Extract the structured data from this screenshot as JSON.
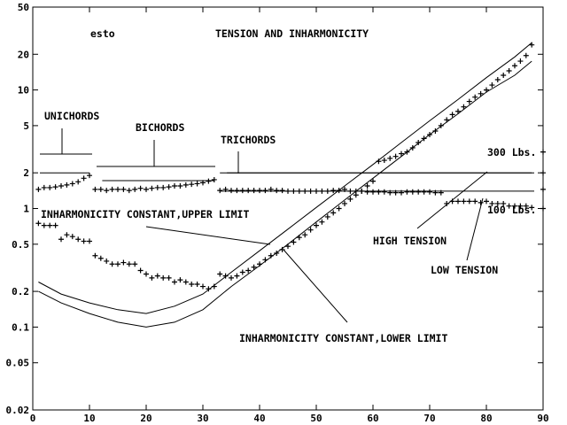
{
  "chart_data": {
    "type": "scatter",
    "title": "TENSION AND INHARMONICITY",
    "id_label": "esto",
    "yscale": "log",
    "xlim": [
      0,
      90
    ],
    "ylim": [
      0.02,
      50
    ],
    "x_ticks": [
      0,
      10,
      20,
      30,
      40,
      50,
      60,
      70,
      80,
      90
    ],
    "y_ticks": [
      0.02,
      0.05,
      0.1,
      0.2,
      0.5,
      1,
      2,
      5,
      10,
      20,
      50
    ],
    "y_tick_labels": [
      "0.02",
      "0.05",
      "0.1",
      "0.2",
      "0.5",
      "1",
      "2",
      "5",
      "10",
      "20",
      "50"
    ],
    "annotations": {
      "unichords": "UNICHORDS",
      "bichords": "BICHORDS",
      "trichords": "TRICHORDS",
      "lbs300": "300 Lbs.",
      "lbs100": "100 Lbs.",
      "inh_upper": "INHARMONICITY CONSTANT,UPPER LIMIT",
      "inh_lower": "INHARMONICITY CONSTANT,LOWER LIMIT",
      "high_tension": "HIGH TENSION",
      "low_tension": "LOW TENSION"
    },
    "reference_lines": [
      {
        "label": "300 Lbs.",
        "y": 2.0
      },
      {
        "label": "100 Lbs.",
        "y": 1.4
      }
    ],
    "series": [
      {
        "marker": "plus",
        "x": [
          1,
          2,
          3,
          4,
          5,
          6,
          7,
          8,
          9,
          10,
          11,
          12,
          13,
          14,
          15,
          16,
          17,
          18,
          19,
          20,
          21,
          22,
          23,
          24,
          25,
          26,
          27,
          28,
          29,
          30,
          31,
          32,
          33,
          34,
          35,
          36,
          37,
          38,
          39,
          40,
          41,
          42,
          43,
          44,
          45,
          46,
          47,
          48,
          49,
          50,
          51,
          52,
          53,
          54,
          55,
          56,
          57,
          58,
          59,
          60,
          61,
          62,
          63,
          64,
          65,
          66,
          67,
          68,
          69,
          70,
          71,
          72,
          73,
          74,
          75,
          76,
          77,
          78,
          79,
          80,
          81,
          82,
          83,
          84,
          85,
          86,
          87,
          88
        ],
        "y": [
          1.45,
          1.5,
          1.5,
          1.52,
          1.55,
          1.58,
          1.62,
          1.68,
          1.8,
          1.9,
          1.45,
          1.45,
          1.42,
          1.45,
          1.45,
          1.45,
          1.42,
          1.45,
          1.48,
          1.45,
          1.48,
          1.5,
          1.5,
          1.52,
          1.55,
          1.55,
          1.58,
          1.6,
          1.62,
          1.65,
          1.7,
          1.75,
          1.42,
          1.45,
          1.42,
          1.42,
          1.42,
          1.42,
          1.42,
          1.42,
          1.42,
          1.45,
          1.42,
          1.42,
          1.4,
          1.4,
          1.4,
          1.4,
          1.4,
          1.4,
          1.4,
          1.4,
          1.42,
          1.42,
          1.45,
          1.4,
          1.4,
          1.4,
          1.38,
          1.38,
          1.38,
          1.38,
          1.36,
          1.36,
          1.36,
          1.38,
          1.38,
          1.38,
          1.38,
          1.38,
          1.36,
          1.36,
          1.1,
          1.15,
          1.15,
          1.15,
          1.15,
          1.15,
          1.12,
          1.15,
          1.1,
          1.1,
          1.1,
          1.05,
          1.05,
          1.05,
          1.05,
          1.02
        ]
      },
      {
        "marker": "plus",
        "x": [
          1,
          2,
          3,
          4,
          5,
          6,
          7,
          8,
          9,
          10,
          11,
          12,
          13,
          14,
          15,
          16,
          17,
          18,
          19,
          20,
          21,
          22,
          23,
          24,
          25,
          26,
          27,
          28,
          29,
          30,
          31,
          32,
          33,
          34,
          35,
          36,
          37,
          38,
          39,
          40,
          41,
          42,
          43,
          44,
          45,
          46,
          47,
          48,
          49,
          50,
          51,
          52,
          53,
          54,
          55,
          56,
          57,
          58,
          59,
          60,
          61,
          62,
          63,
          64,
          65,
          66,
          67,
          68,
          69,
          70,
          71,
          72,
          73,
          74,
          75,
          76,
          77,
          78,
          79,
          80,
          81,
          82,
          83,
          84,
          85,
          86,
          87,
          88
        ],
        "y": [
          0.75,
          0.72,
          0.72,
          0.72,
          0.55,
          0.6,
          0.58,
          0.55,
          0.53,
          0.53,
          0.4,
          0.38,
          0.36,
          0.34,
          0.34,
          0.35,
          0.34,
          0.34,
          0.3,
          0.28,
          0.26,
          0.27,
          0.26,
          0.26,
          0.24,
          0.25,
          0.24,
          0.23,
          0.23,
          0.22,
          0.21,
          0.22,
          0.28,
          0.27,
          0.26,
          0.27,
          0.29,
          0.3,
          0.32,
          0.34,
          0.37,
          0.4,
          0.42,
          0.45,
          0.48,
          0.52,
          0.57,
          0.6,
          0.66,
          0.72,
          0.77,
          0.85,
          0.92,
          1.0,
          1.1,
          1.2,
          1.3,
          1.4,
          1.55,
          1.7,
          2.5,
          2.55,
          2.65,
          2.75,
          2.9,
          3.0,
          3.25,
          3.6,
          3.9,
          4.2,
          4.5,
          5.0,
          5.6,
          6.2,
          6.6,
          7.2,
          8.0,
          8.7,
          9.3,
          10.0,
          11.0,
          12.2,
          13.3,
          14.5,
          16.0,
          17.5,
          19.5,
          24.0
        ]
      },
      {
        "name": "INHARMONICITY CONSTANT,UPPER LIMIT",
        "marker": "none",
        "x": [
          1,
          5,
          10,
          15,
          20,
          25,
          30,
          35,
          40,
          45,
          50,
          55,
          60,
          65,
          70,
          75,
          80,
          85,
          88
        ],
        "y": [
          0.24,
          0.19,
          0.16,
          0.14,
          0.13,
          0.15,
          0.19,
          0.29,
          0.44,
          0.67,
          1.02,
          1.55,
          2.35,
          3.6,
          5.5,
          8.3,
          12.7,
          19.0,
          25.0
        ]
      },
      {
        "name": "INHARMONICITY CONSTANT,LOWER LIMIT",
        "marker": "none",
        "x": [
          1,
          5,
          10,
          15,
          20,
          25,
          30,
          35,
          40,
          45,
          50,
          55,
          60,
          65,
          70,
          75,
          80,
          85,
          88
        ],
        "y": [
          0.2,
          0.16,
          0.13,
          0.11,
          0.1,
          0.11,
          0.14,
          0.22,
          0.33,
          0.5,
          0.77,
          1.18,
          1.8,
          2.75,
          4.2,
          6.3,
          9.6,
          13.3,
          17.5
        ]
      }
    ],
    "segments": [
      {
        "label": "UNICHORDS",
        "x": [
          0,
          10
        ],
        "y": 2.0
      },
      {
        "label": "BICHORDS",
        "x": [
          11,
          32
        ],
        "y": 1.72
      },
      {
        "label": "TRICHORDS",
        "x": [
          33,
          88
        ],
        "y": 2.0
      }
    ]
  }
}
